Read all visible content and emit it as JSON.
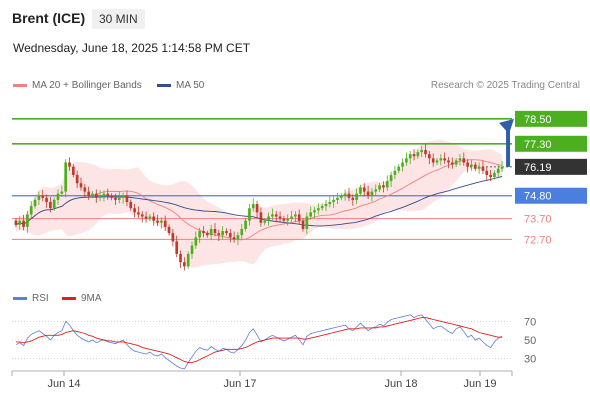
{
  "header": {
    "instrument": "Brent (ICE)",
    "timeframe": "30 MIN",
    "datetime": "Wednesday, June 18, 2025 1:14:58 PM CET"
  },
  "legend_top": [
    {
      "label": "MA 20 + Bollinger Bands",
      "color": "#f08080"
    },
    {
      "label": "MA 50",
      "color": "#2f4f8f"
    }
  ],
  "legend_bottom": [
    {
      "label": "RSI",
      "color": "#5b7fdc"
    },
    {
      "label": "9MA",
      "color": "#e02020"
    }
  ],
  "copyright": "Research © 2025 Trading Central",
  "colors": {
    "resistance": "#4caf20",
    "pivot": "#4a7fe0",
    "support": "#f08080",
    "current": "#333333",
    "arrow": "#2e5fa8",
    "bollinger_fill": "#fde0e0",
    "candle_up": "#4caf20",
    "candle_down": "#c0392b"
  },
  "chart_data": [
    {
      "type": "candlestick",
      "title": "Brent (ICE)",
      "ylim": [
        70.6,
        79.6
      ],
      "x_ticks": [
        "Jun 14",
        "Jun 17",
        "Jun 18",
        "Jun 19"
      ],
      "levels": [
        {
          "value": 78.5,
          "label": "78.50",
          "kind": "resistance"
        },
        {
          "value": 77.3,
          "label": "77.30",
          "kind": "resistance"
        },
        {
          "value": 76.19,
          "label": "76.19",
          "kind": "current"
        },
        {
          "value": 74.8,
          "label": "74.80",
          "kind": "pivot"
        },
        {
          "value": 73.7,
          "label": "73.70",
          "kind": "support"
        },
        {
          "value": 72.7,
          "label": "72.70",
          "kind": "support"
        }
      ],
      "close_series": [
        73.4,
        73.6,
        73.3,
        73.9,
        74.3,
        74.6,
        74.8,
        74.7,
        74.5,
        74.2,
        74.6,
        74.9,
        75.0,
        76.4,
        76.2,
        75.8,
        75.4,
        75.2,
        75.0,
        74.8,
        74.9,
        74.7,
        74.8,
        74.9,
        74.8,
        74.7,
        74.6,
        74.7,
        74.8,
        74.5,
        74.2,
        74.0,
        73.9,
        73.8,
        73.7,
        73.8,
        73.6,
        73.5,
        73.6,
        73.3,
        73.0,
        72.6,
        72.0,
        71.6,
        71.4,
        72.0,
        72.4,
        72.8,
        73.1,
        73.0,
        72.9,
        73.2,
        73.0,
        72.9,
        73.1,
        73.0,
        72.8,
        72.7,
        72.9,
        73.2,
        73.6,
        74.2,
        74.4,
        74.0,
        73.5,
        73.6,
        73.8,
        73.9,
        73.8,
        73.7,
        73.6,
        73.7,
        73.8,
        73.9,
        73.6,
        73.2,
        73.8,
        74.0,
        74.1,
        74.2,
        74.3,
        74.4,
        74.5,
        74.6,
        74.7,
        74.8,
        74.9,
        74.7,
        74.6,
        74.9,
        75.2,
        75.0,
        74.8,
        75.0,
        75.1,
        75.3,
        75.2,
        75.5,
        75.8,
        76.0,
        76.2,
        76.4,
        76.6,
        76.8,
        76.7,
        76.9,
        77.0,
        76.8,
        76.6,
        76.4,
        76.5,
        76.6,
        76.5,
        76.4,
        76.3,
        76.5,
        76.6,
        76.4,
        76.2,
        76.3,
        76.1,
        76.2,
        76.0,
        75.8,
        75.7,
        75.9,
        76.1,
        76.19
      ],
      "start_open": 73.6
    },
    {
      "type": "line",
      "title": "RSI",
      "ylim": [
        20,
        80
      ],
      "y_ticks": [
        30,
        50,
        70
      ],
      "series": [
        {
          "name": "RSI",
          "values": [
            45,
            47,
            44,
            52,
            56,
            58,
            60,
            57,
            54,
            50,
            55,
            58,
            60,
            70,
            66,
            60,
            55,
            52,
            50,
            48,
            50,
            47,
            49,
            50,
            48,
            47,
            46,
            48,
            50,
            45,
            41,
            38,
            37,
            36,
            35,
            37,
            34,
            33,
            35,
            31,
            28,
            25,
            22,
            20,
            19,
            26,
            32,
            38,
            42,
            40,
            39,
            43,
            40,
            38,
            41,
            40,
            37,
            36,
            40,
            44,
            50,
            58,
            62,
            55,
            48,
            50,
            53,
            55,
            53,
            51,
            49,
            51,
            53,
            55,
            50,
            45,
            54,
            57,
            58,
            59,
            60,
            61,
            62,
            63,
            64,
            65,
            66,
            62,
            60,
            64,
            68,
            64,
            60,
            63,
            64,
            67,
            65,
            69,
            72,
            73,
            74,
            75,
            76,
            77,
            74,
            76,
            77,
            72,
            67,
            62,
            64,
            65,
            62,
            59,
            57,
            62,
            64,
            59,
            53,
            55,
            50,
            52,
            48,
            44,
            42,
            48,
            52,
            54
          ]
        },
        {
          "name": "9MA",
          "values": [
            48,
            48,
            47,
            48,
            49,
            51,
            53,
            54,
            55,
            55,
            55,
            55,
            56,
            58,
            59,
            60,
            59,
            58,
            57,
            55,
            54,
            52,
            51,
            50,
            49,
            49,
            48,
            48,
            48,
            47,
            46,
            45,
            44,
            42,
            41,
            40,
            39,
            38,
            37,
            36,
            35,
            33,
            31,
            29,
            27,
            26,
            26,
            27,
            29,
            31,
            33,
            35,
            37,
            38,
            39,
            40,
            40,
            40,
            40,
            41,
            42,
            44,
            46,
            48,
            49,
            50,
            51,
            52,
            52,
            52,
            52,
            52,
            52,
            52,
            52,
            51,
            51,
            52,
            53,
            54,
            55,
            56,
            57,
            58,
            59,
            60,
            61,
            62,
            62,
            62,
            63,
            63,
            63,
            63,
            63,
            64,
            64,
            65,
            66,
            67,
            68,
            69,
            70,
            71,
            72,
            73,
            74,
            74,
            73,
            72,
            71,
            70,
            69,
            68,
            67,
            66,
            65,
            64,
            63,
            62,
            60,
            58,
            57,
            56,
            55,
            54,
            53,
            53
          ]
        }
      ],
      "x_ticks": [
        "Jun 14",
        "Jun 17",
        "Jun 18",
        "Jun 19"
      ]
    }
  ]
}
